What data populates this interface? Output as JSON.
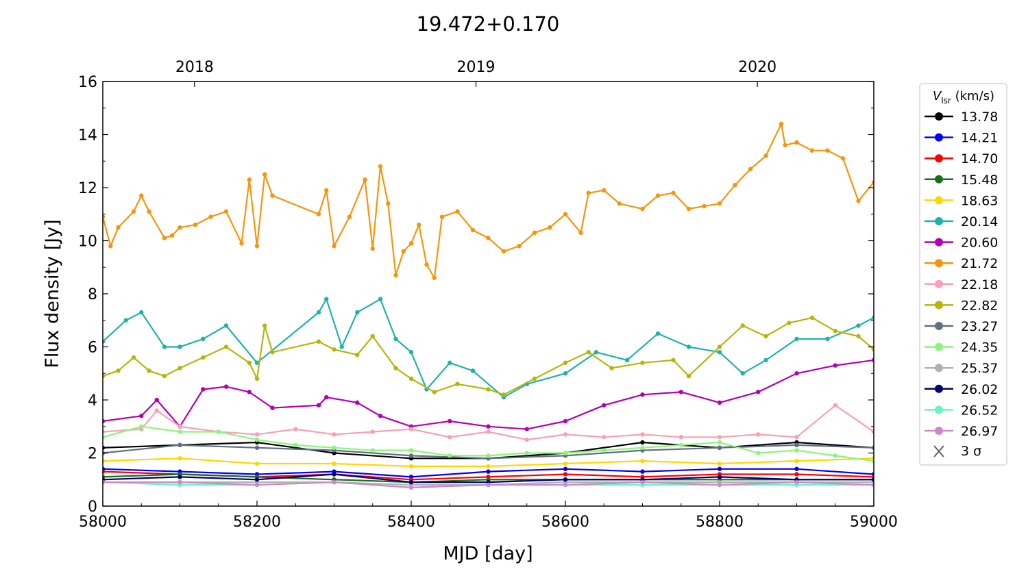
{
  "chart_data": {
    "type": "line",
    "title": "19.472+0.170",
    "xlabel": "MJD [day]",
    "ylabel": "Flux density [Jy]",
    "xlim": [
      58000,
      59000
    ],
    "ylim": [
      0,
      16
    ],
    "x_ticks": [
      58000,
      58200,
      58400,
      58600,
      58800,
      59000
    ],
    "y_ticks": [
      0,
      2,
      4,
      6,
      8,
      10,
      12,
      14,
      16
    ],
    "top_axis_ticks": [
      {
        "label": "2018",
        "mjd": 58119
      },
      {
        "label": "2019",
        "mjd": 58484
      },
      {
        "label": "2020",
        "mjd": 58849
      }
    ],
    "grid": false,
    "legend": {
      "placement": "outside-right",
      "title_symbol": "V",
      "title_subscript": "lsr",
      "title_unit": " (km/s)",
      "threshold_label": "3 σ",
      "threshold_color": "#606060"
    },
    "series": [
      {
        "name": "13.78",
        "color": "#000000",
        "x": [
          58000,
          58100,
          58200,
          58300,
          58400,
          58500,
          58600,
          58700,
          58800,
          58900,
          59000
        ],
        "y": [
          2.2,
          2.3,
          2.4,
          2.0,
          1.8,
          1.8,
          2.0,
          2.4,
          2.2,
          2.4,
          2.2
        ]
      },
      {
        "name": "14.21",
        "color": "#0000ff",
        "x": [
          58000,
          58100,
          58200,
          58300,
          58400,
          58500,
          58600,
          58700,
          58800,
          58900,
          59000
        ],
        "y": [
          1.4,
          1.3,
          1.2,
          1.3,
          1.1,
          1.3,
          1.4,
          1.3,
          1.4,
          1.4,
          1.2
        ]
      },
      {
        "name": "14.70",
        "color": "#ff0000",
        "x": [
          58000,
          58100,
          58200,
          58300,
          58400,
          58500,
          58600,
          58700,
          58800,
          58900,
          59000
        ],
        "y": [
          1.3,
          1.2,
          1.1,
          1.2,
          1.0,
          1.1,
          1.2,
          1.1,
          1.2,
          1.2,
          1.1
        ]
      },
      {
        "name": "15.48",
        "color": "#1a6e1a",
        "x": [
          58000,
          58100,
          58200,
          58300,
          58400,
          58500,
          58600,
          58700,
          58800,
          58900,
          59000
        ],
        "y": [
          1.1,
          1.2,
          1.1,
          1.0,
          0.9,
          1.0,
          1.0,
          1.0,
          1.0,
          1.0,
          1.0
        ]
      },
      {
        "name": "18.63",
        "color": "#ffd700",
        "x": [
          58000,
          58100,
          58200,
          58300,
          58400,
          58500,
          58600,
          58700,
          58800,
          58900,
          59000
        ],
        "y": [
          1.7,
          1.8,
          1.6,
          1.6,
          1.5,
          1.5,
          1.6,
          1.7,
          1.6,
          1.7,
          1.8
        ]
      },
      {
        "name": "20.14",
        "color": "#20b2aa",
        "x": [
          58000,
          58030,
          58050,
          58080,
          58100,
          58130,
          58160,
          58200,
          58280,
          58290,
          58310,
          58330,
          58360,
          58380,
          58400,
          58420,
          58450,
          58480,
          58520,
          58550,
          58600,
          58640,
          58680,
          58720,
          58760,
          58800,
          58830,
          58860,
          58900,
          58940,
          58980,
          59000
        ],
        "y": [
          6.2,
          7.0,
          7.3,
          6.0,
          6.0,
          6.3,
          6.8,
          5.4,
          7.3,
          7.8,
          6.0,
          7.3,
          7.8,
          6.3,
          5.8,
          4.4,
          5.4,
          5.1,
          4.1,
          4.6,
          5.0,
          5.8,
          5.5,
          6.5,
          6.0,
          5.8,
          5.0,
          5.5,
          6.3,
          6.3,
          6.8,
          7.1
        ]
      },
      {
        "name": "20.60",
        "color": "#b000b8",
        "x": [
          58000,
          58050,
          58070,
          58100,
          58130,
          58160,
          58190,
          58220,
          58280,
          58290,
          58330,
          58360,
          58400,
          58450,
          58500,
          58550,
          58600,
          58650,
          58700,
          58750,
          58800,
          58850,
          58900,
          58950,
          59000
        ],
        "y": [
          3.2,
          3.4,
          4.0,
          3.0,
          4.4,
          4.5,
          4.3,
          3.7,
          3.8,
          4.1,
          3.9,
          3.4,
          3.0,
          3.2,
          3.0,
          2.9,
          3.2,
          3.8,
          4.2,
          4.3,
          3.9,
          4.3,
          5.0,
          5.3,
          5.5
        ]
      },
      {
        "name": "21.72",
        "color": "#f5950a",
        "x": [
          58000,
          58010,
          58020,
          58040,
          58050,
          58060,
          58080,
          58090,
          58100,
          58120,
          58140,
          58160,
          58180,
          58190,
          58200,
          58210,
          58220,
          58280,
          58290,
          58300,
          58320,
          58340,
          58350,
          58360,
          58370,
          58380,
          58390,
          58400,
          58410,
          58420,
          58430,
          58440,
          58460,
          58480,
          58500,
          58520,
          58540,
          58560,
          58580,
          58600,
          58620,
          58630,
          58650,
          58670,
          58700,
          58720,
          58740,
          58760,
          58780,
          58800,
          58820,
          58840,
          58860,
          58880,
          58885,
          58900,
          58920,
          58940,
          58960,
          58980,
          59000
        ],
        "y": [
          10.9,
          9.8,
          10.5,
          11.1,
          11.7,
          11.1,
          10.1,
          10.2,
          10.5,
          10.6,
          10.9,
          11.1,
          9.9,
          12.3,
          9.8,
          12.5,
          11.7,
          11.0,
          11.9,
          9.8,
          10.9,
          12.3,
          9.7,
          12.8,
          11.4,
          8.7,
          9.6,
          9.9,
          10.6,
          9.1,
          8.6,
          10.9,
          11.1,
          10.4,
          10.1,
          9.6,
          9.8,
          10.3,
          10.5,
          11.0,
          10.3,
          11.8,
          11.9,
          11.4,
          11.2,
          11.7,
          11.8,
          11.2,
          11.3,
          11.4,
          12.1,
          12.7,
          13.2,
          14.4,
          13.6,
          13.7,
          13.4,
          13.4,
          13.1,
          11.5,
          12.2
        ]
      },
      {
        "name": "22.18",
        "color": "#f7a1b4",
        "x": [
          58000,
          58050,
          58070,
          58100,
          58150,
          58200,
          58250,
          58300,
          58350,
          58400,
          58450,
          58500,
          58550,
          58600,
          58650,
          58700,
          58750,
          58800,
          58850,
          58900,
          58950,
          59000
        ],
        "y": [
          2.8,
          2.9,
          3.6,
          3.0,
          2.8,
          2.7,
          2.9,
          2.7,
          2.8,
          2.9,
          2.6,
          2.8,
          2.5,
          2.7,
          2.6,
          2.7,
          2.6,
          2.6,
          2.7,
          2.6,
          3.8,
          2.8
        ]
      },
      {
        "name": "22.82",
        "color": "#b5b50f",
        "x": [
          58000,
          58020,
          58040,
          58060,
          58080,
          58100,
          58130,
          58160,
          58190,
          58200,
          58210,
          58220,
          58280,
          58300,
          58330,
          58350,
          58380,
          58400,
          58430,
          58460,
          58500,
          58520,
          58560,
          58600,
          58630,
          58660,
          58700,
          58740,
          58760,
          58800,
          58830,
          58860,
          58890,
          58920,
          58950,
          58980,
          59000
        ],
        "y": [
          4.9,
          5.1,
          5.6,
          5.1,
          4.9,
          5.2,
          5.6,
          6.0,
          5.4,
          4.8,
          6.8,
          5.8,
          6.2,
          5.9,
          5.7,
          6.4,
          5.2,
          4.8,
          4.3,
          4.6,
          4.4,
          4.2,
          4.8,
          5.4,
          5.8,
          5.2,
          5.4,
          5.5,
          4.9,
          6.0,
          6.8,
          6.4,
          6.9,
          7.1,
          6.6,
          6.4,
          5.9
        ]
      },
      {
        "name": "23.27",
        "color": "#607080",
        "x": [
          58000,
          58100,
          58200,
          58300,
          58400,
          58500,
          58600,
          58700,
          58800,
          58900,
          59000
        ],
        "y": [
          2.0,
          2.3,
          2.2,
          2.1,
          1.9,
          1.8,
          1.9,
          2.1,
          2.2,
          2.3,
          2.2
        ]
      },
      {
        "name": "24.35",
        "color": "#8cf57a",
        "x": [
          58000,
          58050,
          58100,
          58150,
          58200,
          58250,
          58300,
          58350,
          58400,
          58450,
          58500,
          58550,
          58600,
          58650,
          58700,
          58750,
          58800,
          58850,
          58900,
          58950,
          59000
        ],
        "y": [
          2.6,
          3.0,
          2.8,
          2.8,
          2.5,
          2.3,
          2.2,
          2.1,
          2.1,
          1.9,
          1.9,
          2.0,
          2.0,
          2.1,
          2.2,
          2.3,
          2.4,
          2.0,
          2.1,
          1.9,
          1.7
        ]
      },
      {
        "name": "25.37",
        "color": "#b0b0b0",
        "x": [
          58000,
          58100,
          58200,
          58300,
          58400,
          58500,
          58600,
          58700,
          58800,
          58900,
          59000
        ],
        "y": [
          0.9,
          0.9,
          0.9,
          0.9,
          0.8,
          0.8,
          0.9,
          0.9,
          0.9,
          0.9,
          0.9
        ]
      },
      {
        "name": "26.02",
        "color": "#000070",
        "x": [
          58000,
          58100,
          58200,
          58300,
          58400,
          58500,
          58600,
          58700,
          58800,
          58900,
          59000
        ],
        "y": [
          1.0,
          1.1,
          1.0,
          1.2,
          0.9,
          0.9,
          1.0,
          1.0,
          1.1,
          1.0,
          1.0
        ]
      },
      {
        "name": "26.52",
        "color": "#66f5c0",
        "x": [
          58000,
          58100,
          58200,
          58300,
          58400,
          58500,
          58600,
          58700,
          58800,
          58900,
          59000
        ],
        "y": [
          0.9,
          0.8,
          0.8,
          0.9,
          0.7,
          0.8,
          0.8,
          0.8,
          0.8,
          0.8,
          0.8
        ]
      },
      {
        "name": "26.97",
        "color": "#cc88cc",
        "x": [
          58000,
          58100,
          58200,
          58300,
          58400,
          58500,
          58600,
          58700,
          58800,
          58900,
          59000
        ],
        "y": [
          0.9,
          0.9,
          0.8,
          0.9,
          0.7,
          0.8,
          0.8,
          0.9,
          0.8,
          0.9,
          0.8
        ]
      }
    ]
  }
}
